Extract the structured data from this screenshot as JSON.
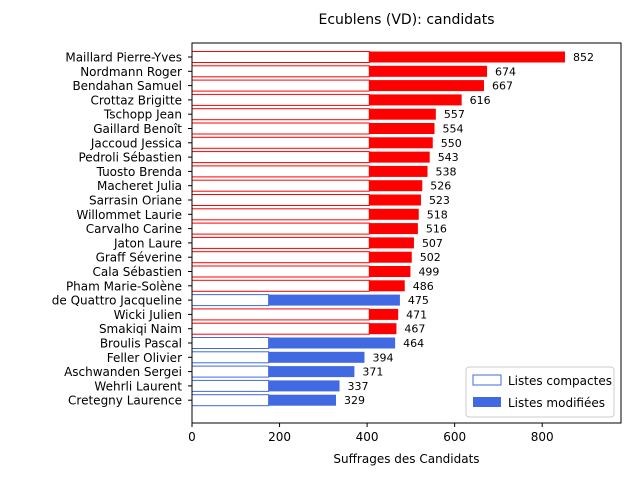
{
  "chart_data": {
    "type": "bar",
    "orientation": "horizontal",
    "title": "Ecublens (VD): candidats",
    "xlabel": "Suffrages des Candidats",
    "ylabel": "",
    "xlim": [
      0,
      980
    ],
    "xticks": [
      0,
      200,
      400,
      600,
      800
    ],
    "legend_placement": "lower-right",
    "grid": false,
    "legend": [
      {
        "label": "Listes compactes",
        "style": "outline",
        "color": "#4169e1"
      },
      {
        "label": "Listes modifiées",
        "style": "filled",
        "color": "#4169e1"
      }
    ],
    "candidates": [
      {
        "name": "Maillard Pierre-Yves",
        "total": 852,
        "compact": 405,
        "color": "#ff0000"
      },
      {
        "name": "Nordmann Roger",
        "total": 674,
        "compact": 405,
        "color": "#ff0000"
      },
      {
        "name": "Bendahan Samuel",
        "total": 667,
        "compact": 405,
        "color": "#ff0000"
      },
      {
        "name": "Crottaz Brigitte",
        "total": 616,
        "compact": 405,
        "color": "#ff0000"
      },
      {
        "name": "Tschopp Jean",
        "total": 557,
        "compact": 405,
        "color": "#ff0000"
      },
      {
        "name": "Gaillard Benoît",
        "total": 554,
        "compact": 405,
        "color": "#ff0000"
      },
      {
        "name": "Jaccoud Jessica",
        "total": 550,
        "compact": 405,
        "color": "#ff0000"
      },
      {
        "name": "Pedroli Sébastien",
        "total": 543,
        "compact": 405,
        "color": "#ff0000"
      },
      {
        "name": "Tuosto Brenda",
        "total": 538,
        "compact": 405,
        "color": "#ff0000"
      },
      {
        "name": "Macheret Julia",
        "total": 526,
        "compact": 405,
        "color": "#ff0000"
      },
      {
        "name": "Sarrasin Oriane",
        "total": 523,
        "compact": 405,
        "color": "#ff0000"
      },
      {
        "name": "Willommet Laurie",
        "total": 518,
        "compact": 405,
        "color": "#ff0000"
      },
      {
        "name": "Carvalho Carine",
        "total": 516,
        "compact": 405,
        "color": "#ff0000"
      },
      {
        "name": "Jaton Laure",
        "total": 507,
        "compact": 405,
        "color": "#ff0000"
      },
      {
        "name": "Graff Séverine",
        "total": 502,
        "compact": 405,
        "color": "#ff0000"
      },
      {
        "name": "Cala Sébastien",
        "total": 499,
        "compact": 405,
        "color": "#ff0000"
      },
      {
        "name": "Pham Marie-Solène",
        "total": 486,
        "compact": 405,
        "color": "#ff0000"
      },
      {
        "name": "de Quattro Jacqueline",
        "total": 475,
        "compact": 175,
        "color": "#4169e1"
      },
      {
        "name": "Wicki Julien",
        "total": 471,
        "compact": 405,
        "color": "#ff0000"
      },
      {
        "name": "Smakiqi Naim",
        "total": 467,
        "compact": 405,
        "color": "#ff0000"
      },
      {
        "name": "Broulis Pascal",
        "total": 464,
        "compact": 175,
        "color": "#4169e1"
      },
      {
        "name": "Feller Olivier",
        "total": 394,
        "compact": 175,
        "color": "#4169e1"
      },
      {
        "name": "Aschwanden Sergei",
        "total": 371,
        "compact": 175,
        "color": "#4169e1"
      },
      {
        "name": "Wehrli Laurent",
        "total": 337,
        "compact": 175,
        "color": "#4169e1"
      },
      {
        "name": "Cretegny Laurence",
        "total": 329,
        "compact": 175,
        "color": "#4169e1"
      }
    ]
  }
}
